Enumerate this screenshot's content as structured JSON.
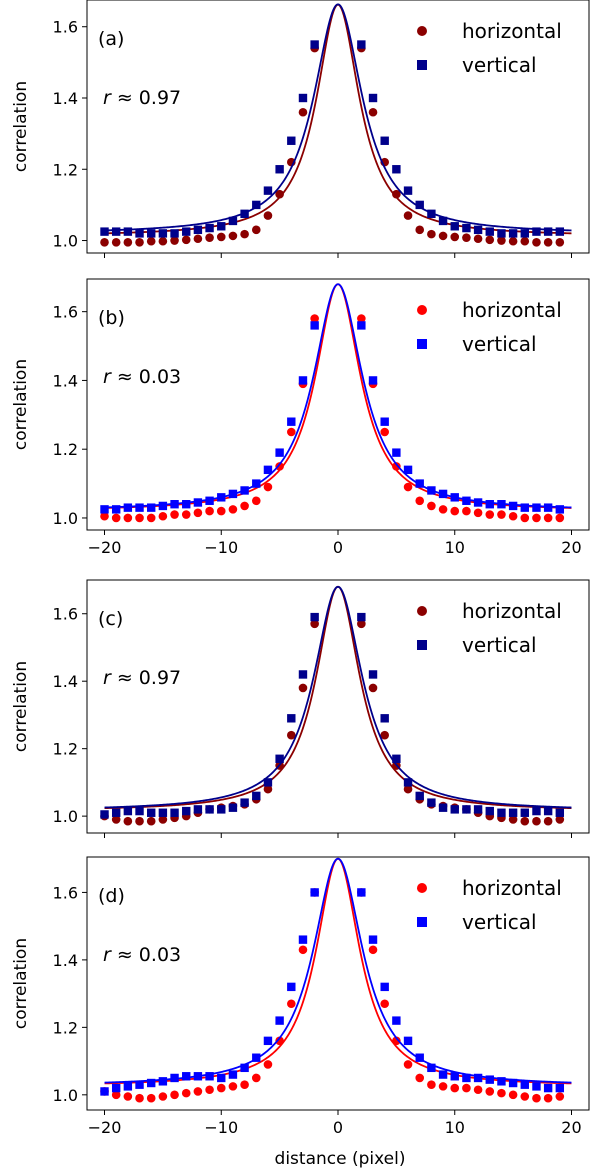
{
  "figure": {
    "xlabel": "distance (pixel)"
  },
  "chart_data": [
    {
      "type": "scatter",
      "panel_label": "(a)",
      "r_label": "r ≈  0.97",
      "ylabel": "correlation",
      "xlabel": "",
      "xlim": [
        -21.5,
        21.5
      ],
      "ylim": [
        0.965,
        1.675
      ],
      "xticks": [
        -20,
        -10,
        0,
        10,
        20
      ],
      "xtick_labels_shown": false,
      "yticks": [
        1.0,
        1.2,
        1.4,
        1.6
      ],
      "ytick_labels": [
        "1.0",
        "1.2",
        "1.4",
        "1.6"
      ],
      "grid": false,
      "legend": "top-right",
      "series": [
        {
          "name": "horizontal",
          "marker": "circle",
          "color": "#8b0000",
          "x": [
            -20,
            -19,
            -18,
            -17,
            -16,
            -15,
            -14,
            -13,
            -12,
            -11,
            -10,
            -9,
            -8,
            -7,
            -6,
            -5,
            -4,
            -3,
            -2,
            2,
            3,
            4,
            5,
            6,
            7,
            8,
            9,
            10,
            11,
            12,
            13,
            14,
            15,
            16,
            17,
            18,
            19
          ],
          "y": [
            0.995,
            0.995,
            0.995,
            0.995,
            0.998,
            0.998,
            1.0,
            1.002,
            1.005,
            1.008,
            1.01,
            1.013,
            1.018,
            1.03,
            1.07,
            1.13,
            1.22,
            1.36,
            1.54,
            1.54,
            1.36,
            1.22,
            1.13,
            1.07,
            1.03,
            1.018,
            1.013,
            1.01,
            1.008,
            1.005,
            1.002,
            1.0,
            0.998,
            0.998,
            0.995,
            0.995,
            0.995
          ],
          "fit": {
            "amplitude": 0.65,
            "width": 2.25,
            "baseline": 1.012
          }
        },
        {
          "name": "vertical",
          "marker": "square",
          "color": "#00008b",
          "x": [
            -20,
            -19,
            -18,
            -17,
            -16,
            -15,
            -14,
            -13,
            -12,
            -11,
            -10,
            -9,
            -8,
            -7,
            -6,
            -5,
            -4,
            -3,
            -2,
            2,
            3,
            4,
            5,
            6,
            7,
            8,
            9,
            10,
            11,
            12,
            13,
            14,
            15,
            16,
            17,
            18,
            19
          ],
          "y": [
            1.025,
            1.025,
            1.025,
            1.02,
            1.02,
            1.02,
            1.02,
            1.025,
            1.03,
            1.035,
            1.04,
            1.055,
            1.075,
            1.1,
            1.14,
            1.2,
            1.28,
            1.4,
            1.55,
            1.55,
            1.4,
            1.28,
            1.2,
            1.14,
            1.1,
            1.075,
            1.055,
            1.04,
            1.035,
            1.03,
            1.025,
            1.02,
            1.02,
            1.02,
            1.025,
            1.025,
            1.025
          ],
          "fit": {
            "amplitude": 0.645,
            "width": 2.55,
            "baseline": 1.018
          }
        }
      ]
    },
    {
      "type": "scatter",
      "panel_label": "(b)",
      "r_label": "r ≈  0.03",
      "ylabel": "correlation",
      "xlabel": "",
      "xlim": [
        -21.5,
        21.5
      ],
      "ylim": [
        0.965,
        1.695
      ],
      "xticks": [
        -20,
        -10,
        0,
        10,
        20
      ],
      "xtick_labels_shown": true,
      "xtick_labels": [
        "−20",
        "−10",
        "0",
        "10",
        "20"
      ],
      "yticks": [
        1.0,
        1.2,
        1.4,
        1.6
      ],
      "ytick_labels": [
        "1.0",
        "1.2",
        "1.4",
        "1.6"
      ],
      "grid": false,
      "legend": "top-right",
      "series": [
        {
          "name": "horizontal",
          "marker": "circle",
          "color": "#ff0000",
          "x": [
            -20,
            -19,
            -18,
            -17,
            -16,
            -15,
            -14,
            -13,
            -12,
            -11,
            -10,
            -9,
            -8,
            -7,
            -6,
            -5,
            -4,
            -3,
            -2,
            2,
            3,
            4,
            5,
            6,
            7,
            8,
            9,
            10,
            11,
            12,
            13,
            14,
            15,
            16,
            17,
            18,
            19
          ],
          "y": [
            1.005,
            1.0,
            1.0,
            1.0,
            1.0,
            1.005,
            1.01,
            1.01,
            1.015,
            1.02,
            1.02,
            1.025,
            1.035,
            1.05,
            1.09,
            1.15,
            1.25,
            1.39,
            1.58,
            1.58,
            1.39,
            1.25,
            1.15,
            1.09,
            1.05,
            1.035,
            1.025,
            1.02,
            1.02,
            1.015,
            1.01,
            1.01,
            1.005,
            1.0,
            1.0,
            1.0,
            1.0
          ],
          "fit": {
            "amplitude": 0.66,
            "width": 2.35,
            "baseline": 1.02
          }
        },
        {
          "name": "vertical",
          "marker": "square",
          "color": "#0000ff",
          "x": [
            -20,
            -19,
            -18,
            -17,
            -16,
            -15,
            -14,
            -13,
            -12,
            -11,
            -10,
            -9,
            -8,
            -7,
            -6,
            -5,
            -4,
            -3,
            -2,
            2,
            3,
            4,
            5,
            6,
            7,
            8,
            9,
            10,
            11,
            12,
            13,
            14,
            15,
            16,
            17,
            18,
            19
          ],
          "y": [
            1.025,
            1.025,
            1.03,
            1.03,
            1.03,
            1.035,
            1.04,
            1.04,
            1.045,
            1.05,
            1.06,
            1.07,
            1.08,
            1.1,
            1.14,
            1.19,
            1.28,
            1.4,
            1.56,
            1.56,
            1.4,
            1.28,
            1.19,
            1.14,
            1.1,
            1.08,
            1.07,
            1.06,
            1.05,
            1.045,
            1.04,
            1.04,
            1.035,
            1.03,
            1.03,
            1.03,
            1.025
          ],
          "fit": {
            "amplitude": 0.66,
            "width": 2.55,
            "baseline": 1.02
          }
        }
      ]
    },
    {
      "type": "scatter",
      "panel_label": "(c)",
      "r_label": "r ≈  0.97",
      "ylabel": "correlation",
      "xlabel": "",
      "xlim": [
        -21.5,
        21.5
      ],
      "ylim": [
        0.95,
        1.7
      ],
      "xticks": [
        -20,
        -10,
        0,
        10,
        20
      ],
      "xtick_labels_shown": false,
      "yticks": [
        1.0,
        1.2,
        1.4,
        1.6
      ],
      "ytick_labels": [
        "1.0",
        "1.2",
        "1.4",
        "1.6"
      ],
      "grid": false,
      "legend": "top-right",
      "series": [
        {
          "name": "horizontal",
          "marker": "circle",
          "color": "#8b0000",
          "x": [
            -20,
            -19,
            -18,
            -17,
            -16,
            -15,
            -14,
            -13,
            -12,
            -11,
            -10,
            -9,
            -8,
            -7,
            -6,
            -5,
            -4,
            -3,
            -2,
            2,
            3,
            4,
            5,
            6,
            7,
            8,
            9,
            10,
            11,
            12,
            13,
            14,
            15,
            16,
            17,
            18,
            19
          ],
          "y": [
            1.0,
            0.99,
            0.985,
            0.985,
            0.985,
            0.99,
            0.995,
            1.0,
            1.01,
            1.02,
            1.025,
            1.03,
            1.035,
            1.05,
            1.08,
            1.15,
            1.24,
            1.38,
            1.57,
            1.57,
            1.38,
            1.24,
            1.15,
            1.08,
            1.05,
            1.035,
            1.03,
            1.025,
            1.02,
            1.01,
            1.0,
            0.995,
            0.99,
            0.985,
            0.985,
            0.985,
            0.99
          ],
          "fit": {
            "amplitude": 0.665,
            "width": 2.3,
            "baseline": 1.015
          }
        },
        {
          "name": "vertical",
          "marker": "square",
          "color": "#00008b",
          "x": [
            -20,
            -19,
            -18,
            -17,
            -16,
            -15,
            -14,
            -13,
            -12,
            -11,
            -10,
            -9,
            -8,
            -7,
            -6,
            -5,
            -4,
            -3,
            -2,
            2,
            3,
            4,
            5,
            6,
            7,
            8,
            9,
            10,
            11,
            12,
            13,
            14,
            15,
            16,
            17,
            18,
            19
          ],
          "y": [
            1.005,
            1.01,
            1.015,
            1.015,
            1.01,
            1.01,
            1.01,
            1.015,
            1.02,
            1.02,
            1.02,
            1.025,
            1.04,
            1.06,
            1.1,
            1.17,
            1.29,
            1.42,
            1.59,
            1.59,
            1.42,
            1.29,
            1.17,
            1.1,
            1.06,
            1.04,
            1.025,
            1.02,
            1.02,
            1.02,
            1.015,
            1.01,
            1.01,
            1.01,
            1.015,
            1.015,
            1.01
          ],
          "fit": {
            "amplitude": 0.665,
            "width": 2.55,
            "baseline": 1.015
          }
        }
      ]
    },
    {
      "type": "scatter",
      "panel_label": "(d)",
      "r_label": "r ≈  0.03",
      "ylabel": "correlation",
      "xlabel": "distance (pixel)",
      "xlim": [
        -21.5,
        21.5
      ],
      "ylim": [
        0.955,
        1.705
      ],
      "xticks": [
        -20,
        -10,
        0,
        10,
        20
      ],
      "xtick_labels_shown": true,
      "xtick_labels": [
        "−20",
        "−10",
        "0",
        "10",
        "20"
      ],
      "yticks": [
        1.0,
        1.2,
        1.4,
        1.6
      ],
      "ytick_labels": [
        "1.0",
        "1.2",
        "1.4",
        "1.6"
      ],
      "grid": false,
      "legend": "top-right",
      "series": [
        {
          "name": "horizontal",
          "marker": "circle",
          "color": "#ff0000",
          "x": [
            -20,
            -19,
            -18,
            -17,
            -16,
            -15,
            -14,
            -13,
            -12,
            -11,
            -10,
            -9,
            -8,
            -7,
            -6,
            -5,
            -4,
            -3,
            -2,
            2,
            3,
            4,
            5,
            6,
            7,
            8,
            9,
            10,
            11,
            12,
            13,
            14,
            15,
            16,
            17,
            18,
            19
          ],
          "y": [
            1.01,
            1.0,
            0.995,
            0.99,
            0.99,
            0.995,
            1.0,
            1.005,
            1.01,
            1.015,
            1.02,
            1.025,
            1.03,
            1.05,
            1.09,
            1.16,
            1.27,
            1.43,
            1.6,
            1.6,
            1.43,
            1.27,
            1.16,
            1.09,
            1.05,
            1.03,
            1.025,
            1.02,
            1.02,
            1.015,
            1.01,
            1.005,
            1.0,
            0.995,
            0.99,
            0.99,
            0.995
          ],
          "fit": {
            "amplitude": 0.675,
            "width": 2.3,
            "baseline": 1.025
          }
        },
        {
          "name": "vertical",
          "marker": "square",
          "color": "#0000ff",
          "x": [
            -20,
            -19,
            -18,
            -17,
            -16,
            -15,
            -14,
            -13,
            -12,
            -11,
            -10,
            -9,
            -8,
            -7,
            -6,
            -5,
            -4,
            -3,
            -2,
            2,
            3,
            4,
            5,
            6,
            7,
            8,
            9,
            10,
            11,
            12,
            13,
            14,
            15,
            16,
            17,
            18,
            19
          ],
          "y": [
            1.01,
            1.02,
            1.025,
            1.03,
            1.035,
            1.04,
            1.05,
            1.055,
            1.055,
            1.055,
            1.05,
            1.06,
            1.08,
            1.11,
            1.16,
            1.22,
            1.32,
            1.46,
            1.6,
            1.6,
            1.46,
            1.32,
            1.22,
            1.16,
            1.11,
            1.08,
            1.06,
            1.055,
            1.05,
            1.05,
            1.045,
            1.04,
            1.035,
            1.03,
            1.025,
            1.02,
            1.02
          ],
          "fit": {
            "amplitude": 0.675,
            "width": 2.6,
            "baseline": 1.025
          }
        }
      ]
    }
  ]
}
